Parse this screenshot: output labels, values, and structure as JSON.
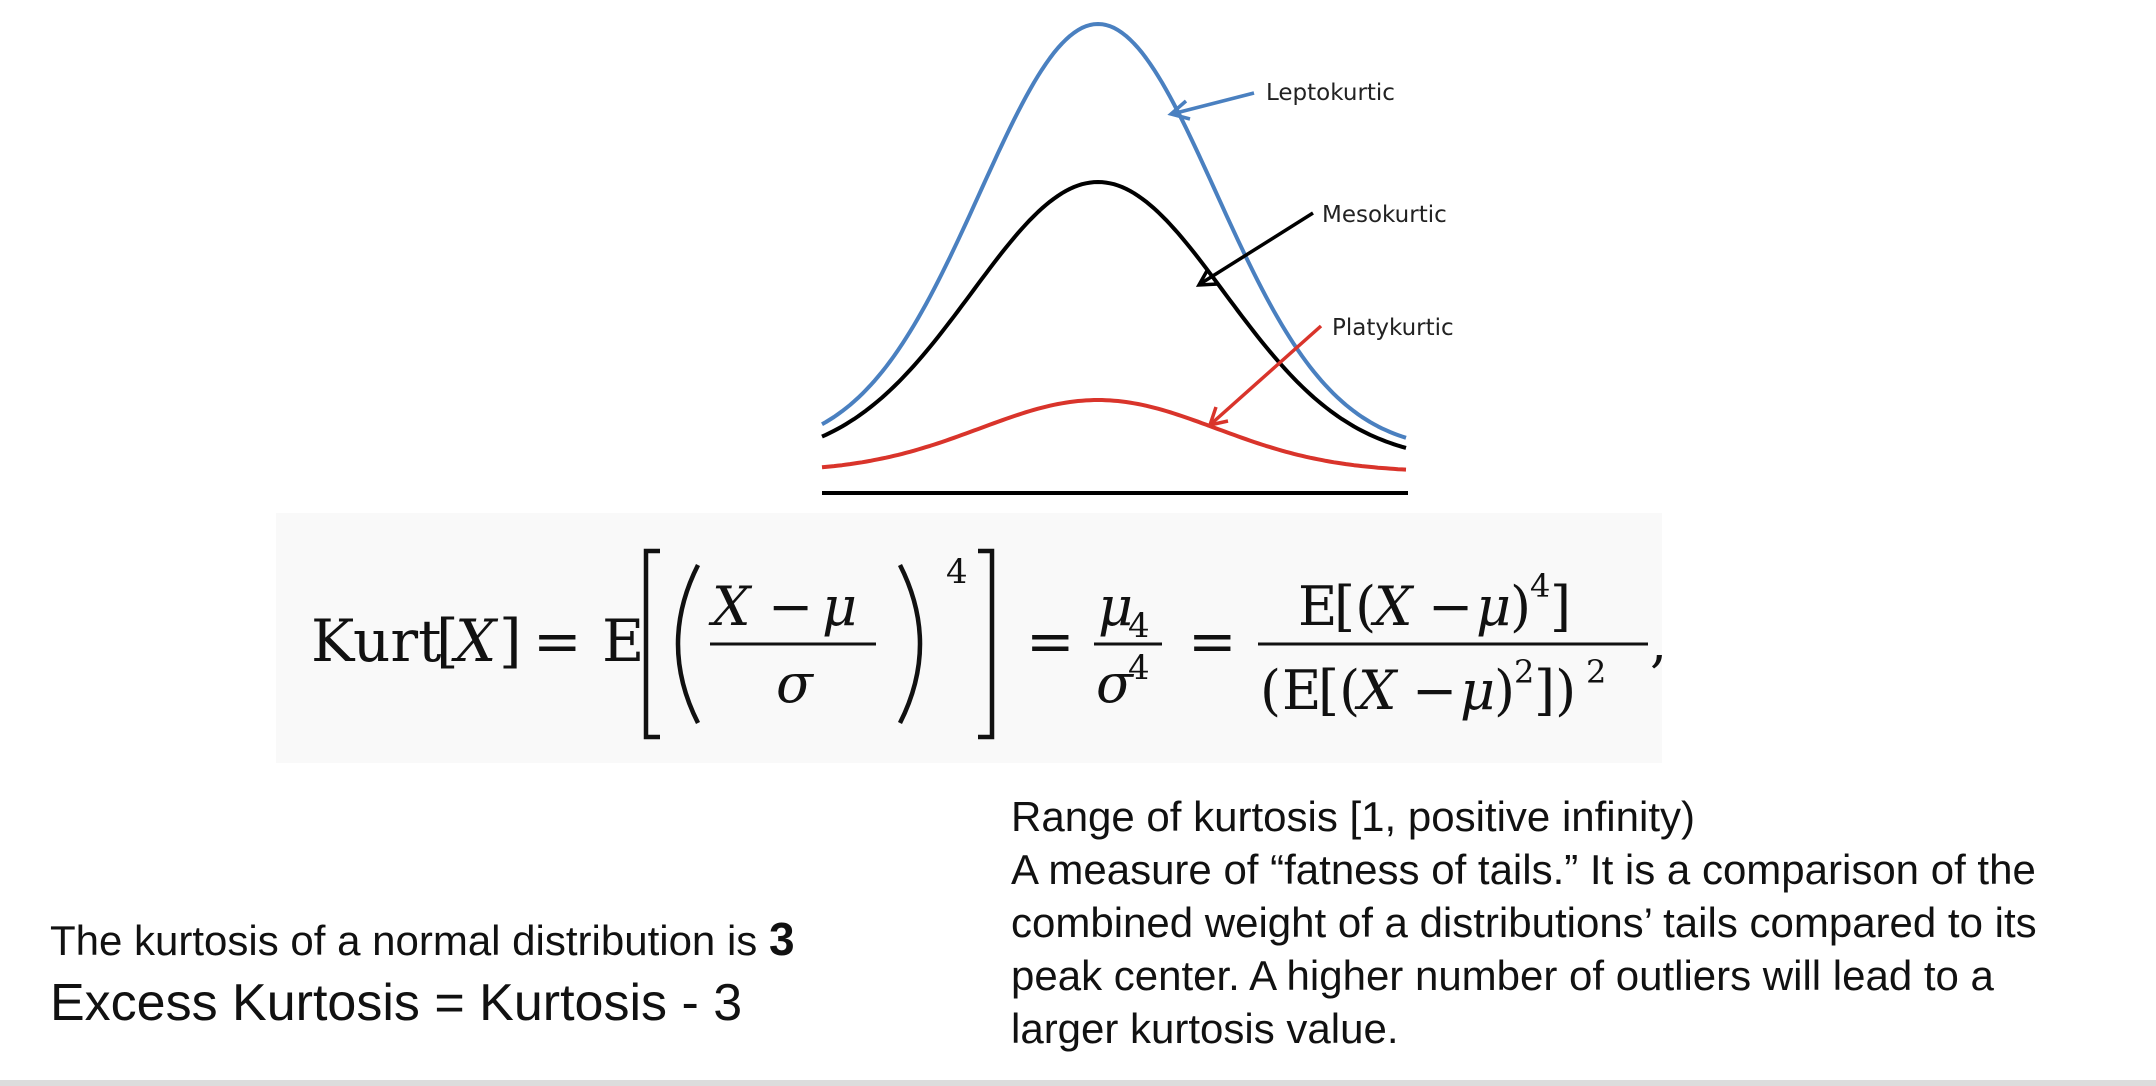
{
  "diagram": {
    "labels": {
      "lepto": "Leptokurtic",
      "meso": "Mesokurtic",
      "platy": "Platykurtic"
    },
    "colors": {
      "lepto": "#4a80c0",
      "meso": "#000000",
      "platy": "#d9342b"
    }
  },
  "formula": {
    "kurt": "Kurt",
    "var_x": "X",
    "expect": "E",
    "mu": "μ",
    "sigma": "σ",
    "power": "4",
    "power_two": "2",
    "mu_sub": "4",
    "minus": "−",
    "equals": "=",
    "comma": ","
  },
  "text": {
    "normal_prefix": "The kurtosis of a normal distribution is ",
    "normal_value": "3",
    "excess": "Excess Kurtosis = Kurtosis - 3",
    "range": "Range of kurtosis [1, positive infinity)",
    "description_lines": [
      "A measure of “fatness of tails.” It is a comparison of the",
      "combined weight of a distributions’ tails compared to its",
      "peak center. A higher number of outliers will lead to a",
      "larger kurtosis value."
    ]
  }
}
